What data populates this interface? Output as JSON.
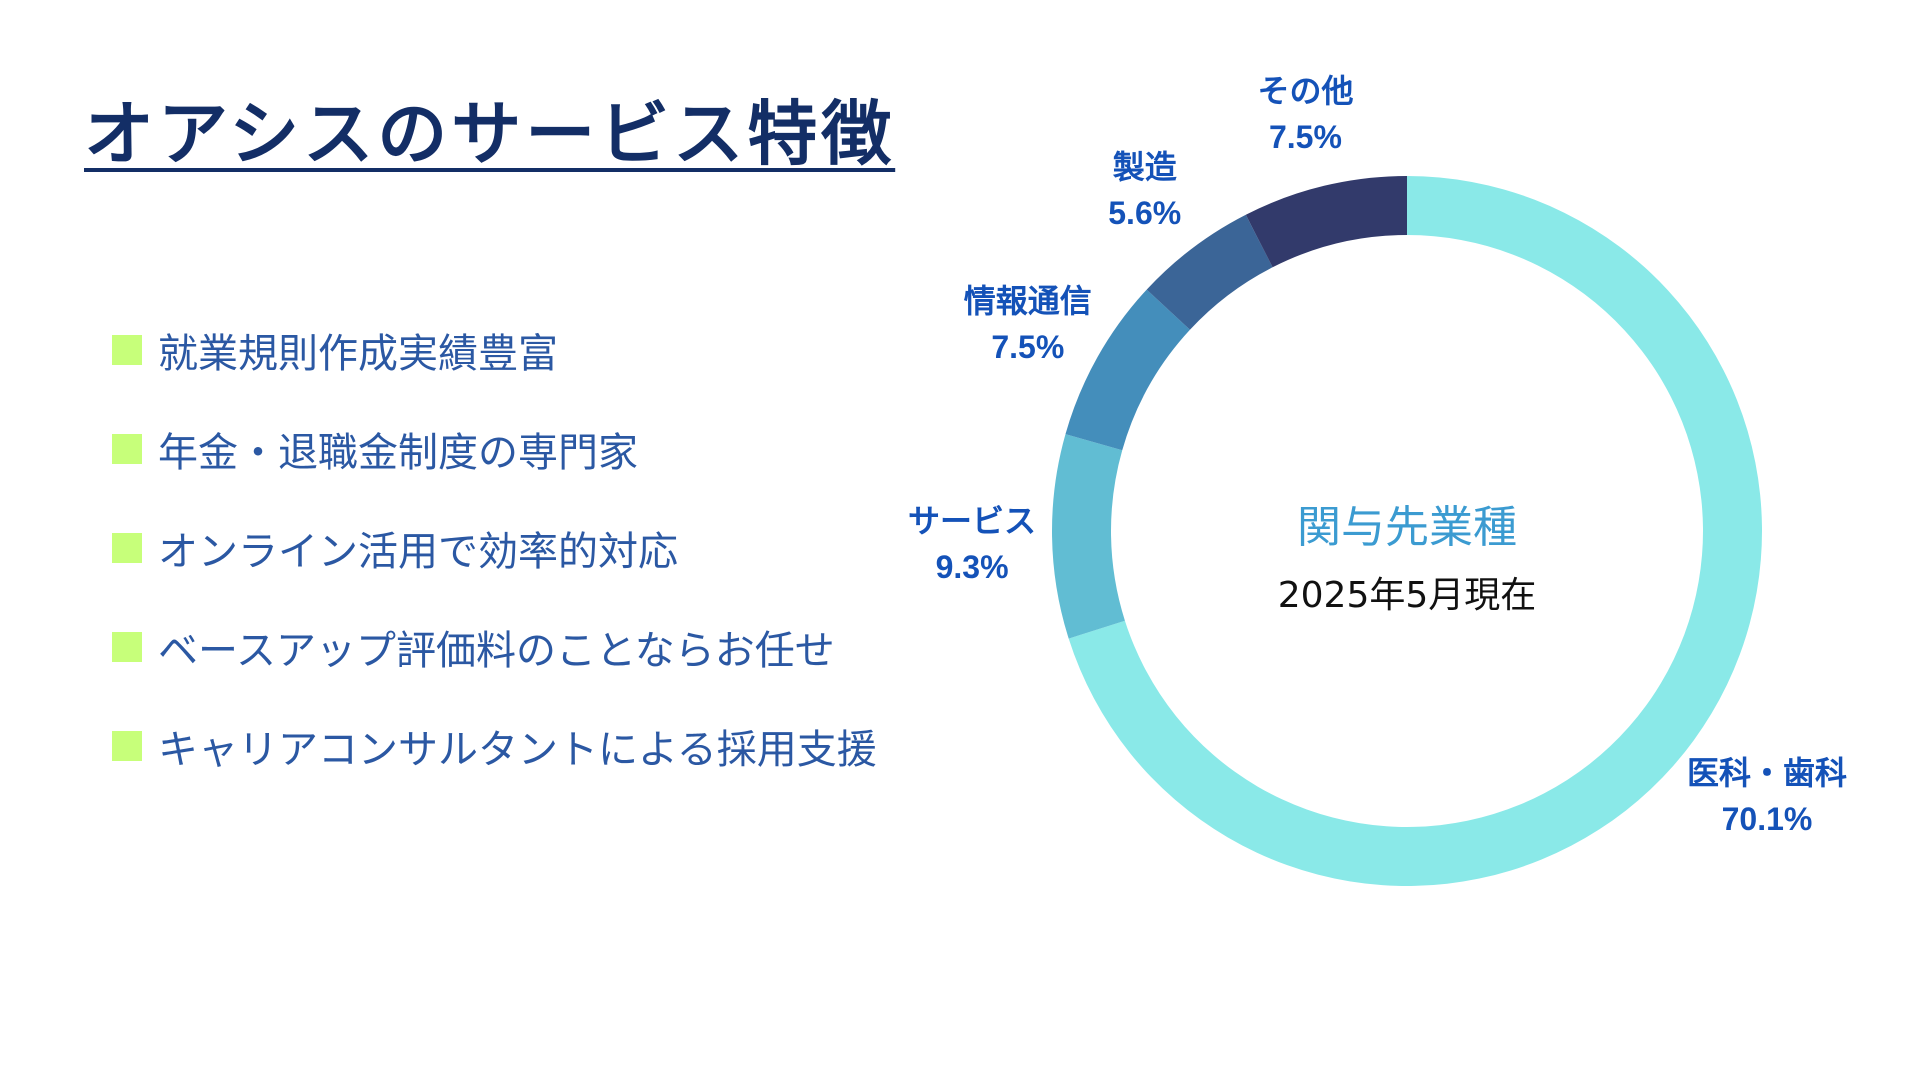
{
  "page": {
    "title": "オアシスのサービス特徴"
  },
  "features": [
    {
      "text": "就業規則作成実績豊富",
      "icon": "square-bullet-icon"
    },
    {
      "text": "年金・退職金制度の専門家",
      "icon": "square-bullet-icon"
    },
    {
      "text": "オンライン活用で効率的対応",
      "icon": "square-bullet-icon"
    },
    {
      "text": "ベースアップ評価料のことならお任せ",
      "icon": "square-bullet-icon"
    },
    {
      "text": "キャリアコンサルタントによる採用支援",
      "icon": "square-bullet-icon"
    }
  ],
  "colors": {
    "title": "#132e66",
    "feature_text": "#2b58a3",
    "bullet": "#c7ff7a",
    "center_title": "#3b9bd1",
    "labels": "#1452b8"
  },
  "chart_data": {
    "type": "pie",
    "style": "donut",
    "title": "関与先業種",
    "subtitle": "2025年5月現在",
    "categories": [
      "医科・歯科",
      "サービス",
      "情報通信",
      "製造",
      "その他"
    ],
    "values": [
      70.1,
      9.3,
      7.5,
      5.6,
      7.5
    ],
    "value_labels": [
      "70.1%",
      "9.3%",
      "7.5%",
      "5.6%",
      "7.5%"
    ],
    "colors": [
      "#8ae9e8",
      "#61bdd3",
      "#448ebb",
      "#3b6597",
      "#323a6b"
    ],
    "start_angle_deg": 0,
    "direction": "clockwise"
  }
}
